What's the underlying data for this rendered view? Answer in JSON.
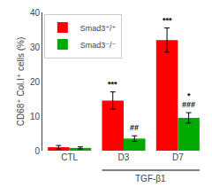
{
  "chart_data": {
    "type": "bar",
    "categories": [
      "CTL",
      "D3",
      "D7"
    ],
    "series": [
      {
        "name": "Smad3⁺/⁺",
        "color": "#ff0000",
        "values": [
          1.0,
          14.5,
          32.0
        ],
        "errors": [
          0.5,
          2.5,
          3.5
        ]
      },
      {
        "name": "Smad3⁻/⁻",
        "color": "#00aa00",
        "values": [
          0.8,
          3.5,
          9.5
        ],
        "errors": [
          0.3,
          0.8,
          1.5
        ]
      }
    ],
    "ylabel": "CD68⁺ Col.I⁺ cells (%)",
    "ylim": [
      0,
      40
    ],
    "yticks": [
      0,
      10,
      20,
      30,
      40
    ],
    "grid": false,
    "legend": "upper left",
    "annotations": [
      {
        "text": "***",
        "category": "D3",
        "series": "Smad3⁺/⁺"
      },
      {
        "text": "##",
        "category": "D3",
        "series": "Smad3⁻/⁻"
      },
      {
        "text": "***",
        "category": "D7",
        "series": "Smad3⁺/⁺"
      },
      {
        "text": "###",
        "category": "D7",
        "series": "Smad3⁻/⁻"
      },
      {
        "text": "*",
        "category": "D7",
        "series": "Smad3⁻/⁻"
      },
      {
        "text": "TGF-β1",
        "categories": [
          "D3",
          "D7"
        ]
      }
    ]
  }
}
